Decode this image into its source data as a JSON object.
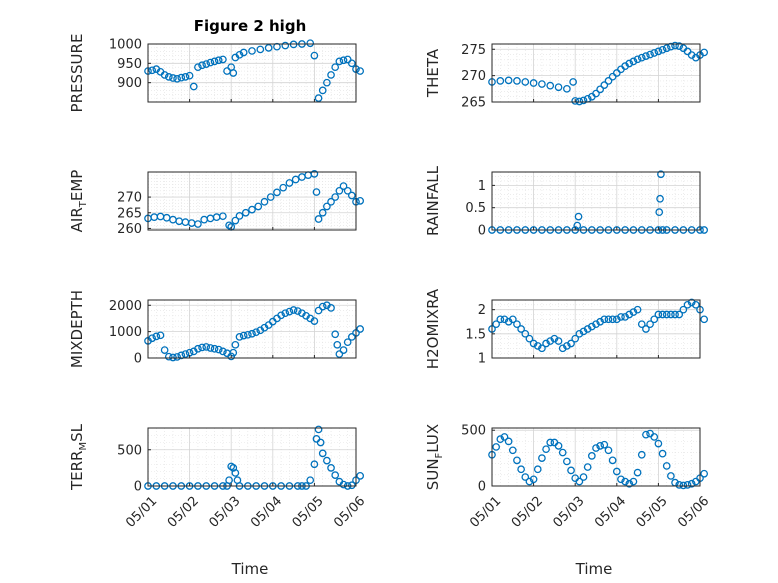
{
  "title": "Figure 2 high",
  "marker_color": "#0072BD",
  "x_tick_labels": [
    "05/01",
    "05/02",
    "05/03",
    "05/04",
    "05/05",
    "05/06"
  ],
  "xlabel": "Time",
  "chart_data": [
    {
      "type": "scatter",
      "name": "pressure",
      "ylabel": {
        "main": "PRESSURE",
        "sub": "",
        "rest": ""
      },
      "ylim": [
        850,
        1000
      ],
      "yticks": [
        900,
        950,
        1000
      ],
      "grid": true,
      "x": [
        0.0,
        0.1,
        0.2,
        0.3,
        0.4,
        0.5,
        0.6,
        0.7,
        0.8,
        0.9,
        1.0,
        1.1,
        1.2,
        1.3,
        1.4,
        1.5,
        1.6,
        1.7,
        1.8,
        1.9,
        2.0,
        2.05,
        2.1,
        2.2,
        2.3,
        2.5,
        2.7,
        2.9,
        3.1,
        3.3,
        3.5,
        3.7,
        3.9,
        4.0,
        4.1,
        4.2,
        4.3,
        4.4,
        4.5,
        4.6,
        4.7,
        4.8,
        4.9,
        5.0,
        5.1
      ],
      "y": [
        930,
        932,
        935,
        928,
        920,
        915,
        912,
        910,
        913,
        915,
        918,
        890,
        940,
        945,
        948,
        952,
        955,
        958,
        960,
        930,
        940,
        925,
        965,
        972,
        978,
        982,
        986,
        990,
        993,
        996,
        999,
        1000,
        1002,
        970,
        860,
        880,
        900,
        920,
        940,
        955,
        958,
        960,
        950,
        935,
        930
      ]
    },
    {
      "type": "scatter",
      "name": "theta",
      "ylabel": {
        "main": "THETA",
        "sub": "",
        "rest": ""
      },
      "ylim": [
        265,
        276
      ],
      "yticks": [
        265,
        270,
        275
      ],
      "grid": true,
      "x": [
        0.0,
        0.2,
        0.4,
        0.6,
        0.8,
        1.0,
        1.2,
        1.4,
        1.6,
        1.8,
        1.95,
        2.0,
        2.1,
        2.2,
        2.3,
        2.4,
        2.5,
        2.6,
        2.7,
        2.8,
        2.9,
        3.0,
        3.1,
        3.2,
        3.3,
        3.4,
        3.5,
        3.6,
        3.7,
        3.8,
        3.9,
        4.0,
        4.1,
        4.2,
        4.3,
        4.4,
        4.5,
        4.6,
        4.7,
        4.8,
        4.9,
        5.0,
        5.1
      ],
      "y": [
        268.8,
        269.0,
        269.1,
        269.0,
        268.8,
        268.6,
        268.4,
        268.1,
        267.8,
        267.5,
        268.8,
        265.2,
        265.1,
        265.3,
        265.6,
        266.0,
        266.6,
        267.4,
        268.2,
        269.0,
        269.8,
        270.5,
        271.2,
        271.8,
        272.3,
        272.7,
        273.1,
        273.4,
        273.7,
        274.0,
        274.3,
        274.6,
        274.9,
        275.2,
        275.5,
        275.7,
        275.6,
        275.2,
        274.6,
        273.9,
        273.4,
        273.9,
        274.4
      ]
    },
    {
      "type": "scatter",
      "name": "air_temp",
      "ylabel": {
        "main": "AIR",
        "sub": "T",
        "rest": "EMP"
      },
      "ylim": [
        259.5,
        278
      ],
      "yticks": [
        260,
        265,
        270
      ],
      "grid": true,
      "x": [
        0.0,
        0.15,
        0.3,
        0.45,
        0.6,
        0.75,
        0.9,
        1.05,
        1.2,
        1.35,
        1.5,
        1.65,
        1.8,
        1.95,
        2.0,
        2.1,
        2.2,
        2.35,
        2.5,
        2.65,
        2.8,
        2.95,
        3.1,
        3.25,
        3.4,
        3.55,
        3.7,
        3.85,
        4.0,
        4.05,
        4.1,
        4.2,
        4.3,
        4.4,
        4.5,
        4.6,
        4.7,
        4.8,
        4.9,
        5.0,
        5.1
      ],
      "y": [
        263.2,
        263.6,
        263.8,
        263.4,
        262.8,
        262.3,
        262.0,
        261.7,
        261.4,
        262.8,
        263.2,
        263.6,
        263.9,
        261.0,
        260.5,
        262.5,
        264.0,
        265.0,
        266.0,
        267.0,
        268.5,
        270.0,
        271.5,
        273.0,
        274.5,
        275.6,
        276.4,
        277.0,
        277.4,
        271.6,
        263.0,
        265.0,
        267.0,
        268.5,
        270.0,
        272.0,
        273.5,
        272.0,
        270.5,
        268.5,
        268.8
      ]
    },
    {
      "type": "scatter",
      "name": "rainfall",
      "ylabel": {
        "main": "RAINFALL",
        "sub": "",
        "rest": ""
      },
      "ylim": [
        0,
        1.3
      ],
      "yticks": [
        0,
        0.5,
        1
      ],
      "grid": true,
      "x": [
        0.0,
        0.2,
        0.4,
        0.6,
        0.8,
        1.0,
        1.2,
        1.4,
        1.6,
        1.8,
        2.0,
        2.05,
        2.08,
        2.2,
        2.4,
        2.6,
        2.8,
        3.0,
        3.2,
        3.4,
        3.6,
        3.8,
        4.0,
        4.02,
        4.04,
        4.06,
        4.1,
        4.2,
        4.4,
        4.6,
        4.8,
        5.0,
        5.1
      ],
      "y": [
        0,
        0,
        0,
        0,
        0,
        0,
        0,
        0,
        0,
        0,
        0,
        0.1,
        0.3,
        0,
        0,
        0,
        0,
        0,
        0,
        0,
        0,
        0,
        0,
        0.4,
        0.7,
        1.25,
        0,
        0,
        0,
        0,
        0,
        0,
        0
      ]
    },
    {
      "type": "scatter",
      "name": "mixdepth",
      "ylabel": {
        "main": "MIXDEPTH",
        "sub": "",
        "rest": ""
      },
      "ylim": [
        0,
        2200
      ],
      "yticks": [
        0,
        1000,
        2000
      ],
      "grid": true,
      "x": [
        0.0,
        0.1,
        0.2,
        0.3,
        0.4,
        0.5,
        0.6,
        0.7,
        0.8,
        0.9,
        1.0,
        1.1,
        1.2,
        1.3,
        1.4,
        1.5,
        1.6,
        1.7,
        1.8,
        1.9,
        2.0,
        2.05,
        2.1,
        2.2,
        2.3,
        2.4,
        2.5,
        2.6,
        2.7,
        2.8,
        2.9,
        3.0,
        3.1,
        3.2,
        3.3,
        3.4,
        3.5,
        3.6,
        3.7,
        3.8,
        3.9,
        4.0,
        4.1,
        4.2,
        4.3,
        4.4,
        4.5,
        4.55,
        4.6,
        4.7,
        4.8,
        4.9,
        5.0,
        5.1
      ],
      "y": [
        650,
        750,
        820,
        860,
        300,
        50,
        20,
        40,
        100,
        150,
        200,
        250,
        350,
        400,
        420,
        380,
        350,
        320,
        250,
        180,
        60,
        200,
        500,
        800,
        850,
        880,
        920,
        980,
        1050,
        1150,
        1250,
        1380,
        1500,
        1620,
        1700,
        1760,
        1820,
        1780,
        1700,
        1600,
        1500,
        1400,
        1800,
        1950,
        2000,
        1900,
        900,
        500,
        150,
        300,
        600,
        800,
        950,
        1100
      ]
    },
    {
      "type": "scatter",
      "name": "h2omixra",
      "ylabel": {
        "main": "H2OMIXRA",
        "sub": "",
        "rest": ""
      },
      "ylim": [
        1,
        2.2
      ],
      "yticks": [
        1,
        1.5,
        2
      ],
      "grid": true,
      "x": [
        0.0,
        0.1,
        0.2,
        0.3,
        0.4,
        0.5,
        0.6,
        0.7,
        0.8,
        0.9,
        1.0,
        1.1,
        1.2,
        1.3,
        1.4,
        1.5,
        1.6,
        1.7,
        1.8,
        1.9,
        2.0,
        2.1,
        2.2,
        2.3,
        2.4,
        2.5,
        2.6,
        2.7,
        2.8,
        2.9,
        3.0,
        3.1,
        3.2,
        3.3,
        3.4,
        3.5,
        3.6,
        3.7,
        3.8,
        3.9,
        4.0,
        4.1,
        4.2,
        4.3,
        4.4,
        4.5,
        4.6,
        4.7,
        4.8,
        4.9,
        5.0,
        5.1
      ],
      "y": [
        1.6,
        1.7,
        1.8,
        1.8,
        1.75,
        1.8,
        1.7,
        1.6,
        1.5,
        1.4,
        1.3,
        1.25,
        1.2,
        1.3,
        1.35,
        1.4,
        1.35,
        1.2,
        1.25,
        1.3,
        1.4,
        1.5,
        1.55,
        1.6,
        1.65,
        1.7,
        1.75,
        1.8,
        1.8,
        1.8,
        1.8,
        1.85,
        1.85,
        1.9,
        1.95,
        2.0,
        1.7,
        1.6,
        1.7,
        1.8,
        1.9,
        1.9,
        1.9,
        1.9,
        1.9,
        1.9,
        2.0,
        2.1,
        2.15,
        2.1,
        2.0,
        1.8
      ]
    },
    {
      "type": "scatter",
      "name": "terr_msl",
      "ylabel": {
        "main": "TERR",
        "sub": "M",
        "rest": "SL"
      },
      "ylim": [
        0,
        800
      ],
      "yticks": [
        0,
        500
      ],
      "grid": true,
      "x": [
        0.0,
        0.2,
        0.4,
        0.6,
        0.8,
        1.0,
        1.2,
        1.4,
        1.6,
        1.8,
        1.9,
        1.95,
        2.0,
        2.05,
        2.1,
        2.15,
        2.2,
        2.4,
        2.6,
        2.8,
        3.0,
        3.2,
        3.4,
        3.6,
        3.7,
        3.8,
        3.9,
        4.0,
        4.05,
        4.1,
        4.15,
        4.2,
        4.3,
        4.4,
        4.5,
        4.6,
        4.7,
        4.8,
        4.9,
        5.0,
        5.1
      ],
      "y": [
        0,
        0,
        0,
        0,
        0,
        0,
        0,
        0,
        0,
        0,
        0,
        80,
        270,
        250,
        180,
        80,
        0,
        0,
        0,
        0,
        0,
        0,
        0,
        0,
        0,
        0,
        80,
        300,
        650,
        780,
        600,
        450,
        350,
        250,
        150,
        60,
        20,
        0,
        10,
        80,
        140
      ]
    },
    {
      "type": "scatter",
      "name": "sun_flux",
      "ylabel": {
        "main": "SUN",
        "sub": "F",
        "rest": "LUX"
      },
      "ylim": [
        0,
        520
      ],
      "yticks": [
        0,
        500
      ],
      "grid": true,
      "x": [
        0.0,
        0.1,
        0.2,
        0.3,
        0.4,
        0.5,
        0.6,
        0.7,
        0.8,
        0.9,
        1.0,
        1.1,
        1.2,
        1.3,
        1.4,
        1.5,
        1.6,
        1.7,
        1.8,
        1.9,
        2.0,
        2.1,
        2.2,
        2.3,
        2.4,
        2.5,
        2.6,
        2.7,
        2.8,
        2.9,
        3.0,
        3.1,
        3.2,
        3.3,
        3.4,
        3.5,
        3.6,
        3.7,
        3.8,
        3.9,
        4.0,
        4.1,
        4.2,
        4.3,
        4.4,
        4.5,
        4.6,
        4.7,
        4.8,
        4.9,
        5.0,
        5.1
      ],
      "y": [
        280,
        350,
        420,
        440,
        400,
        320,
        230,
        150,
        80,
        40,
        60,
        150,
        250,
        330,
        390,
        390,
        360,
        300,
        220,
        140,
        70,
        40,
        80,
        170,
        270,
        340,
        360,
        370,
        320,
        230,
        130,
        60,
        40,
        20,
        40,
        120,
        280,
        460,
        470,
        440,
        380,
        290,
        180,
        90,
        30,
        10,
        5,
        10,
        20,
        40,
        70,
        110
      ]
    }
  ]
}
